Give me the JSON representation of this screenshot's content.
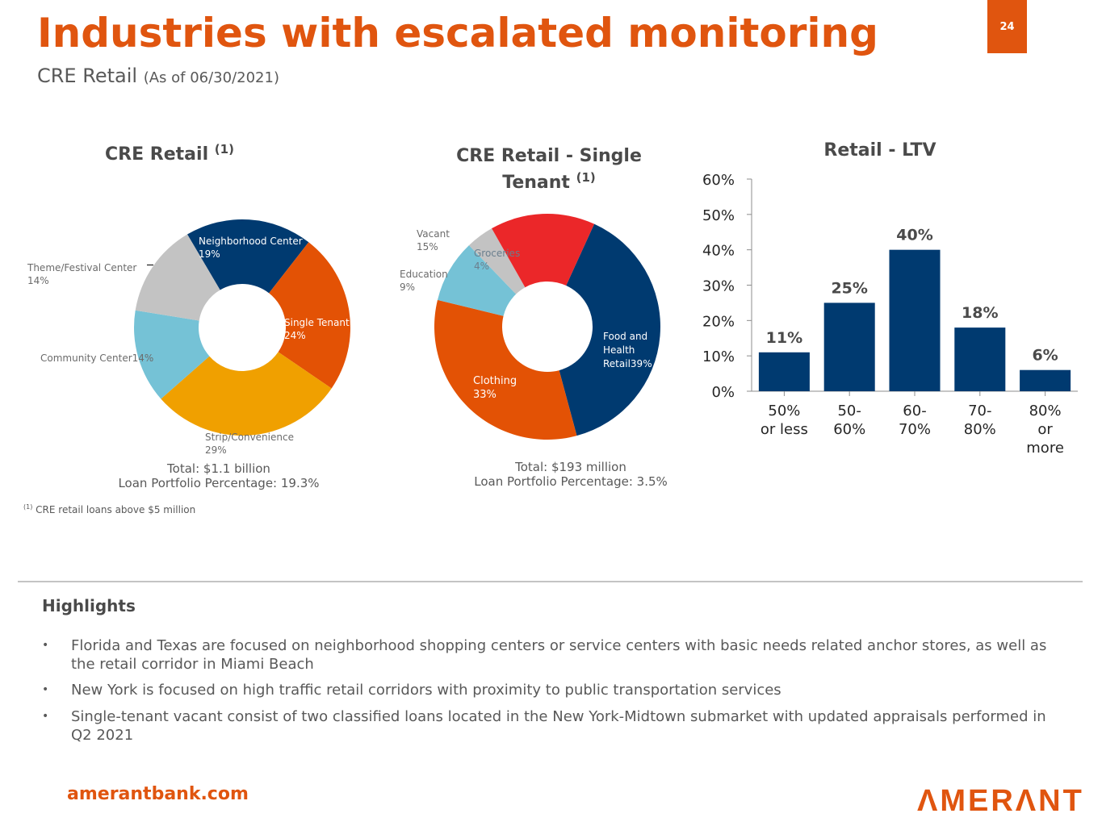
{
  "header": {
    "title": "Industries with escalated monitoring",
    "subtitle": "CRE Retail",
    "subtitle_date": "(As of 06/30/2021)",
    "page_number": "24"
  },
  "colors": {
    "brand_orange": "#E0550F",
    "navy": "#003A70",
    "orange": "#E35205",
    "gold": "#F0A000",
    "light_blue": "#75C2D6",
    "grey": "#C3C3C3",
    "red": "#EB2729"
  },
  "chart_data": [
    {
      "type": "pie",
      "title": "CRE Retail",
      "title_footnote": "(1)",
      "donut": true,
      "labels": [
        "Neighborhood Center",
        "Single Tenant",
        "Strip/Convenience",
        "Community Center",
        "Theme/Festival Center"
      ],
      "values": [
        19,
        24,
        29,
        14,
        14
      ],
      "value_labels": [
        "19%",
        "24%",
        "29%",
        "14%",
        "14%"
      ],
      "colors": [
        "#003A70",
        "#E35205",
        "#F0A000",
        "#75C2D6",
        "#C3C3C3"
      ],
      "total": "Total: $1.1 billion",
      "portfolio_pct": "Loan Portfolio Percentage: 19.3%"
    },
    {
      "type": "pie",
      "title": "CRE Retail - Single Tenant",
      "title_line1": "CRE Retail - Single",
      "title_line2": "Tenant",
      "title_footnote": "(1)",
      "donut": true,
      "labels": [
        "Food and Health Retail",
        "Clothing",
        "Education",
        "Groceries",
        "Vacant"
      ],
      "values": [
        39,
        33,
        9,
        4,
        15
      ],
      "value_labels": [
        "39%",
        "33%",
        "9%",
        "4%",
        "15%"
      ],
      "colors": [
        "#003A70",
        "#E35205",
        "#75C2D6",
        "#C3C3C3",
        "#EB2729"
      ],
      "total": "Total: $193 million",
      "portfolio_pct": "Loan Portfolio Percentage: 3.5%"
    },
    {
      "type": "bar",
      "title": "Retail - LTV",
      "categories": [
        "50% or less",
        "50-60%",
        "60-70%",
        "70-80%",
        "80% or more"
      ],
      "category_lines": [
        [
          "50%",
          "or less"
        ],
        [
          "50-",
          "60%"
        ],
        [
          "60-",
          "70%"
        ],
        [
          "70-",
          "80%"
        ],
        [
          "80%",
          "or",
          "more"
        ]
      ],
      "values": [
        11,
        25,
        40,
        18,
        6
      ],
      "value_labels": [
        "11%",
        "25%",
        "40%",
        "18%",
        "6%"
      ],
      "yticks": [
        "0%",
        "10%",
        "20%",
        "30%",
        "40%",
        "50%",
        "60%"
      ],
      "ylim": [
        0,
        60
      ],
      "xlabel": "",
      "ylabel": "",
      "grid": false,
      "color": "#003A70"
    }
  ],
  "footnote": {
    "marker": "(1)",
    "text": "CRE retail loans above $5 million"
  },
  "highlights": {
    "title": "Highlights",
    "items": [
      "Florida and Texas are focused on neighborhood shopping centers or service centers with basic needs related anchor stores, as well as the retail corridor in Miami Beach",
      "New York is focused on high traffic retail corridors with proximity to public transportation services",
      "Single-tenant vacant consist of two classified loans located in the New York-Midtown submarket with updated appraisals performed in Q2 2021"
    ],
    "bullet": "•"
  },
  "footer": {
    "url": "amerantbank.com",
    "logo": "ΛMERΛNT"
  }
}
